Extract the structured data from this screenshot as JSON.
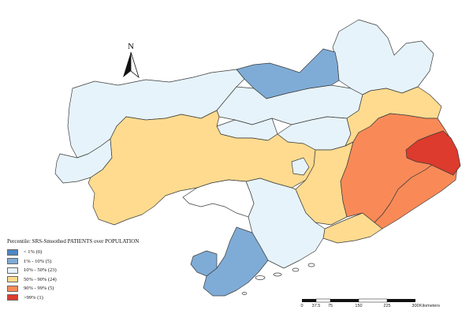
{
  "compass": {
    "label": "N"
  },
  "legend": {
    "title": "Percentile: SRS-Smoothed PATIENTS over POPULATION",
    "items": [
      {
        "label": "< 1% (0)",
        "color": "#4f86c2"
      },
      {
        "label": "1% - 10% (5)",
        "color": "#7facd6"
      },
      {
        "label": "10% - 50% (23)",
        "color": "#e6f3fa"
      },
      {
        "label": "50% - 90% (24)",
        "color": "#fedb8f"
      },
      {
        "label": "90% - 99% (5)",
        "color": "#f98a58"
      },
      {
        "label": ">99% (1)",
        "color": "#dc3b2d"
      }
    ]
  },
  "scale_bar": {
    "ticks": [
      "0",
      "37.5",
      "75",
      "150",
      "225",
      "300"
    ],
    "unit": "Kilometers"
  }
}
